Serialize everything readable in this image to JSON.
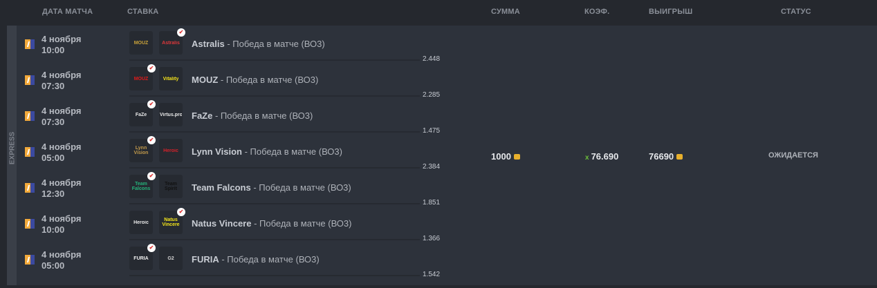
{
  "headers": {
    "date": "ДАТА МАТЧА",
    "bet": "СТАВКА",
    "sum": "СУММА",
    "coef": "КОЭФ.",
    "win": "ВЫИГРЫШ",
    "status": "СТАТУС"
  },
  "type_label": "EXPRESS",
  "rows": [
    {
      "date": "4 ноября",
      "time": "10:00",
      "team1": "MOUZ",
      "team2": "Astralis",
      "picked": 2,
      "team": "Astralis",
      "market": " - Победа в матче (ВО3)",
      "odds": "2.448",
      "c1": "#c9a23a",
      "c2": "#e0383b"
    },
    {
      "date": "4 ноября",
      "time": "07:30",
      "team1": "MOUZ",
      "team2": "Vitality",
      "picked": 1,
      "team": "MOUZ",
      "market": " - Победа в матче (ВО3)",
      "odds": "2.285",
      "c1": "#e21a1a",
      "c2": "#f2e01a"
    },
    {
      "date": "4 ноября",
      "time": "07:30",
      "team1": "FaZe",
      "team2": "Virtus.pro",
      "picked": 1,
      "team": "FaZe",
      "market": " - Победа в матче (ВО3)",
      "odds": "1.475",
      "c1": "#e8e8e8",
      "c2": "#e8e8e8"
    },
    {
      "date": "4 ноября",
      "time": "05:00",
      "team1": "Lynn Vision",
      "team2": "Heroic",
      "picked": 1,
      "team": "Lynn Vision",
      "market": " - Победа в матче (ВО3)",
      "odds": "2.384",
      "c1": "#c29a4b",
      "c2": "#d6222a"
    },
    {
      "date": "4 ноября",
      "time": "12:30",
      "team1": "Team Falcons",
      "team2": "Team Spirit",
      "picked": 1,
      "team": "Team Falcons",
      "market": " - Победа в матче (ВО3)",
      "odds": "1.851",
      "c1": "#25b27a",
      "c2": "#111111"
    },
    {
      "date": "4 ноября",
      "time": "10:00",
      "team1": "Heroic",
      "team2": "Natus Vincere",
      "picked": 2,
      "team": "Natus Vincere",
      "market": " - Победа в матче (ВО3)",
      "odds": "1.366",
      "c1": "#e8e8e8",
      "c2": "#f5e61a"
    },
    {
      "date": "4 ноября",
      "time": "05:00",
      "team1": "FURIA",
      "team2": "G2",
      "picked": 1,
      "team": "FURIA",
      "market": " - Победа в матче (ВО3)",
      "odds": "1.542",
      "c1": "#f0f0f0",
      "c2": "#d0d0d0"
    }
  ],
  "summary": {
    "sum": "1000",
    "coef_prefix": "x",
    "coef": "76.690",
    "win": "76690",
    "status": "ОЖИДАЕТСЯ"
  },
  "colors": {
    "coin": "#e8b02c",
    "coef_x": "#6cbf3a"
  }
}
